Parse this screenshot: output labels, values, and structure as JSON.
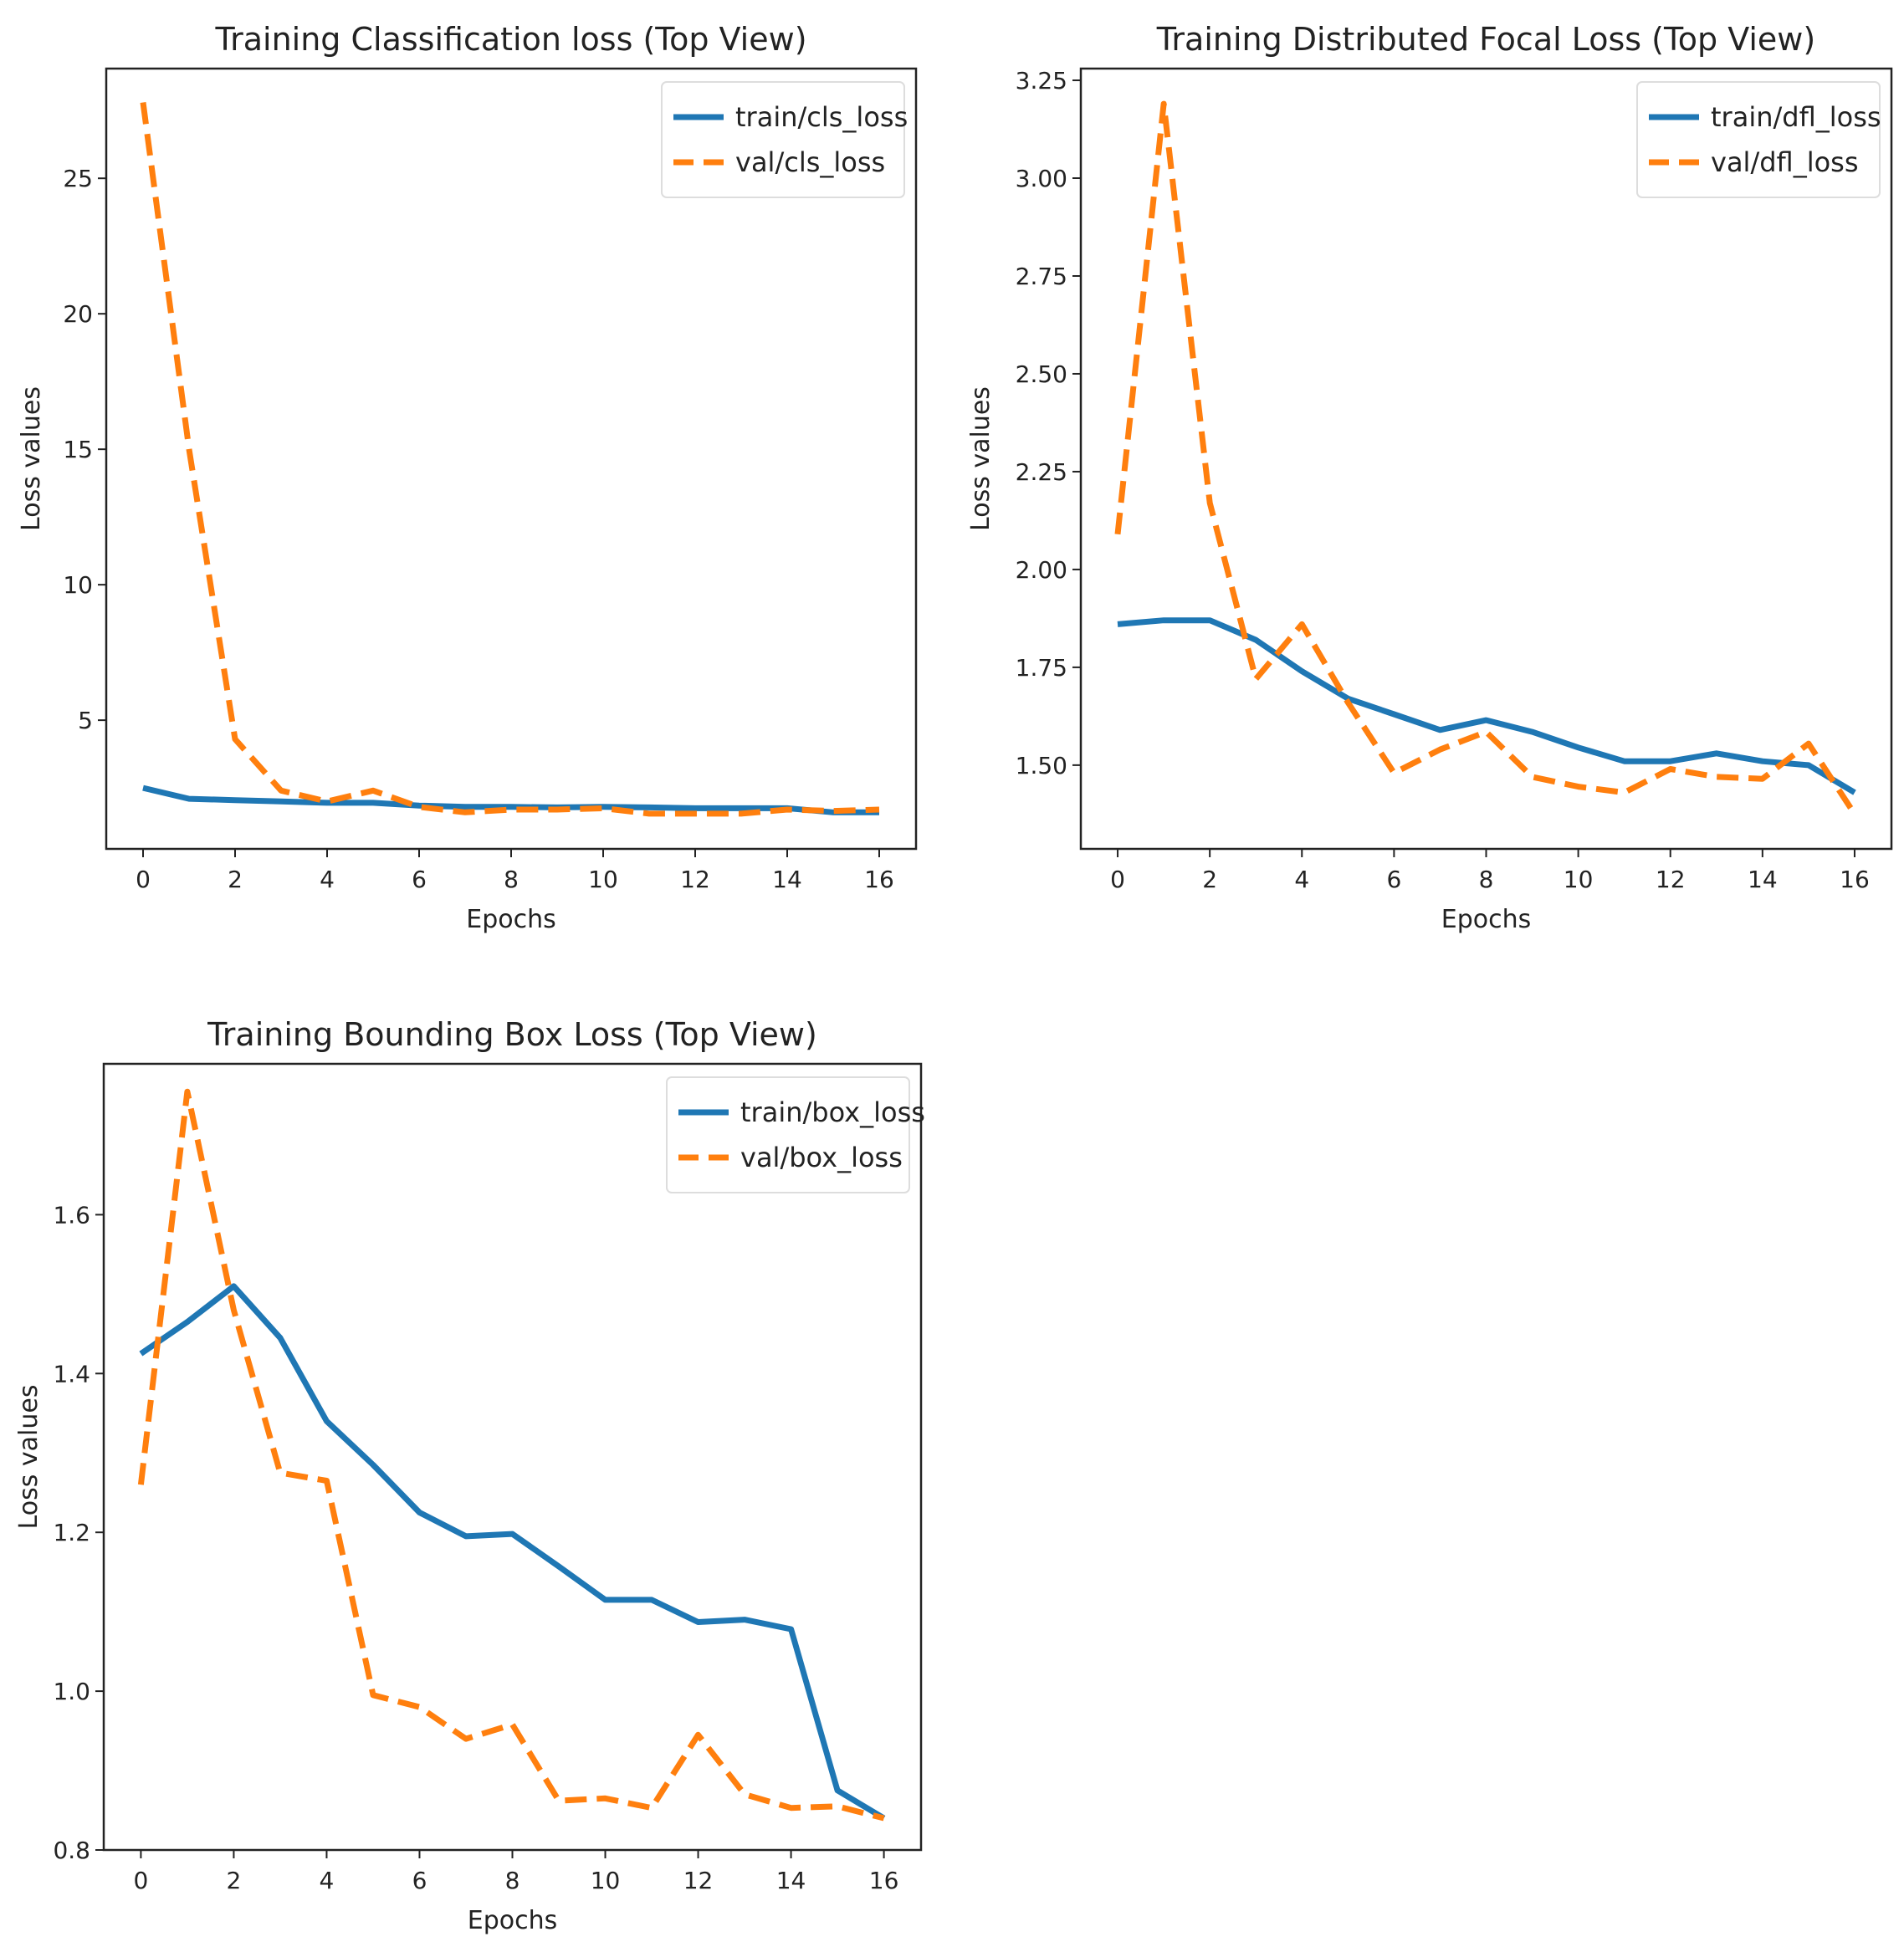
{
  "colors": {
    "train": "#1f77b4",
    "val": "#ff7f0e"
  },
  "chart_data": [
    {
      "type": "line",
      "title": "Training Classification loss (Top View)",
      "xlabel": "Epochs",
      "ylabel": "Loss values",
      "x": [
        0,
        1,
        2,
        3,
        4,
        5,
        6,
        7,
        8,
        9,
        10,
        11,
        12,
        13,
        14,
        15,
        16
      ],
      "xticks": [
        0,
        2,
        4,
        6,
        8,
        10,
        12,
        14,
        16
      ],
      "yticks": [
        5,
        10,
        15,
        20,
        25
      ],
      "ytick_labels": [
        "5",
        "10",
        "15",
        "20",
        "25"
      ],
      "xlim": [
        -0.8,
        16.8
      ],
      "ylim": [
        0.25,
        29.05
      ],
      "grid": false,
      "legend": "top-right",
      "series": [
        {
          "name": "train/cls_loss",
          "style": "solid",
          "values": [
            2.5,
            2.1,
            2.05,
            2.0,
            1.95,
            1.95,
            1.85,
            1.8,
            1.8,
            1.78,
            1.8,
            1.78,
            1.75,
            1.75,
            1.75,
            1.6,
            1.6
          ]
        },
        {
          "name": "val/cls_loss",
          "style": "dashed",
          "values": [
            27.8,
            15.0,
            4.3,
            2.4,
            2.0,
            2.4,
            1.8,
            1.6,
            1.7,
            1.7,
            1.75,
            1.55,
            1.55,
            1.55,
            1.7,
            1.65,
            1.7
          ]
        }
      ]
    },
    {
      "type": "line",
      "title": "Training Distributed Focal Loss (Top View)",
      "xlabel": "Epochs",
      "ylabel": "Loss values",
      "x": [
        0,
        1,
        2,
        3,
        4,
        5,
        6,
        7,
        8,
        9,
        10,
        11,
        12,
        13,
        14,
        15,
        16
      ],
      "xticks": [
        0,
        2,
        4,
        6,
        8,
        10,
        12,
        14,
        16
      ],
      "yticks": [
        1.5,
        1.75,
        2.0,
        2.25,
        2.5,
        2.75,
        3.0,
        3.25
      ],
      "ytick_labels": [
        "1.50",
        "1.75",
        "2.00",
        "2.25",
        "2.50",
        "2.75",
        "3.00",
        "3.25"
      ],
      "xlim": [
        -0.8,
        16.8
      ],
      "ylim": [
        1.286,
        3.28
      ],
      "grid": false,
      "legend": "top-right",
      "series": [
        {
          "name": "train/dfl_loss",
          "style": "solid",
          "values": [
            1.86,
            1.87,
            1.87,
            1.82,
            1.74,
            1.67,
            1.63,
            1.59,
            1.615,
            1.585,
            1.545,
            1.51,
            1.51,
            1.53,
            1.51,
            1.5,
            1.43
          ]
        },
        {
          "name": "val/dfl_loss",
          "style": "dashed",
          "values": [
            2.09,
            3.19,
            2.17,
            1.72,
            1.86,
            1.66,
            1.48,
            1.54,
            1.585,
            1.47,
            1.445,
            1.43,
            1.49,
            1.47,
            1.465,
            1.555,
            1.375
          ]
        }
      ]
    },
    {
      "type": "line",
      "title": "Training Bounding Box Loss (Top View)",
      "xlabel": "Epochs",
      "ylabel": "Loss values",
      "x": [
        0,
        1,
        2,
        3,
        4,
        5,
        6,
        7,
        8,
        9,
        10,
        11,
        12,
        13,
        14,
        15,
        16
      ],
      "xticks": [
        0,
        2,
        4,
        6,
        8,
        10,
        12,
        14,
        16
      ],
      "yticks": [
        0.8,
        1.0,
        1.2,
        1.4,
        1.6
      ],
      "ytick_labels": [
        "0.8",
        "1.0",
        "1.2",
        "1.4",
        "1.6"
      ],
      "xlim": [
        -0.8,
        16.8
      ],
      "ylim": [
        0.8,
        1.79
      ],
      "grid": false,
      "legend": "top-right",
      "series": [
        {
          "name": "train/box_loss",
          "style": "solid",
          "values": [
            1.425,
            1.465,
            1.51,
            1.445,
            1.34,
            1.285,
            1.225,
            1.195,
            1.198,
            1.157,
            1.115,
            1.115,
            1.087,
            1.09,
            1.078,
            0.875,
            0.84
          ]
        },
        {
          "name": "val/box_loss",
          "style": "dashed",
          "values": [
            1.26,
            1.755,
            1.48,
            1.275,
            1.265,
            0.995,
            0.98,
            0.94,
            0.958,
            0.862,
            0.865,
            0.853,
            0.945,
            0.87,
            0.853,
            0.855,
            0.84
          ]
        }
      ]
    }
  ]
}
